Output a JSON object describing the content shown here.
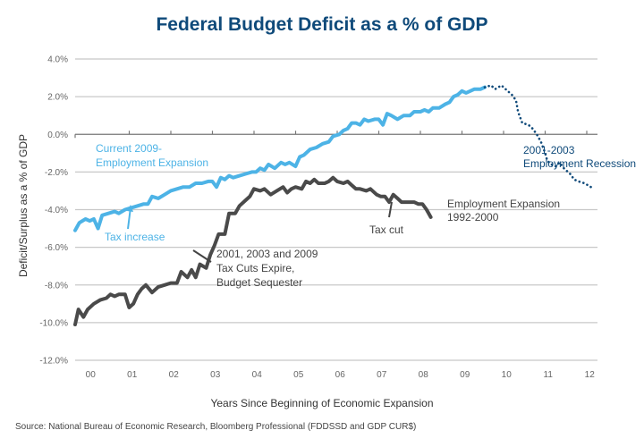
{
  "chart_data": {
    "type": "line",
    "title": "Federal Budget Deficit as a % of GDP",
    "xlabel": "Years Since Beginning of Economic Expansion",
    "ylabel": "Deficit/Surplus as a % of GDP",
    "source": "Source: National Bureau of Economic Research, Bloomberg Professional (FDDSSD and GDP CUR$)",
    "ylim": [
      -12,
      4
    ],
    "xlim": [
      0,
      13
    ],
    "grid": true,
    "y_ticks": [
      4,
      2,
      0,
      -2,
      -4,
      -6,
      -8,
      -10,
      -12
    ],
    "y_tick_labels": [
      "4.0%",
      "2.0%",
      "0.0%",
      "-2.0%",
      "-4.0%",
      "-6.0%",
      "-8.0%",
      "-10.0%",
      "-12.0%"
    ],
    "x_tick_labels": [
      "00",
      "01",
      "02",
      "03",
      "04",
      "05",
      "06",
      "07",
      "08",
      "09",
      "10",
      "11",
      "12"
    ],
    "series": [
      {
        "name": "Employment Expansion 1992-2000",
        "color": "#4a4a4a",
        "style": "solid",
        "points": [
          [
            0.0,
            -10.1
          ],
          [
            0.08,
            -9.3
          ],
          [
            0.2,
            -9.7
          ],
          [
            0.3,
            -9.3
          ],
          [
            0.45,
            -9.0
          ],
          [
            0.6,
            -8.8
          ],
          [
            0.75,
            -8.7
          ],
          [
            0.85,
            -8.5
          ],
          [
            0.95,
            -8.6
          ],
          [
            1.05,
            -8.5
          ],
          [
            1.2,
            -8.5
          ],
          [
            1.3,
            -9.2
          ],
          [
            1.4,
            -9.0
          ],
          [
            1.5,
            -8.5
          ],
          [
            1.6,
            -8.2
          ],
          [
            1.7,
            -8.0
          ],
          [
            1.85,
            -8.4
          ],
          [
            2.0,
            -8.1
          ],
          [
            2.15,
            -8.0
          ],
          [
            2.3,
            -7.9
          ],
          [
            2.45,
            -7.9
          ],
          [
            2.55,
            -7.3
          ],
          [
            2.7,
            -7.6
          ],
          [
            2.8,
            -7.2
          ],
          [
            2.9,
            -7.6
          ],
          [
            3.0,
            -6.9
          ],
          [
            3.15,
            -7.1
          ],
          [
            3.25,
            -6.4
          ],
          [
            3.35,
            -5.9
          ],
          [
            3.45,
            -5.3
          ],
          [
            3.6,
            -5.3
          ],
          [
            3.7,
            -4.2
          ],
          [
            3.85,
            -4.2
          ],
          [
            3.95,
            -3.8
          ],
          [
            4.1,
            -3.5
          ],
          [
            4.2,
            -3.3
          ],
          [
            4.3,
            -2.9
          ],
          [
            4.45,
            -3.0
          ],
          [
            4.55,
            -2.9
          ],
          [
            4.7,
            -3.2
          ],
          [
            4.85,
            -3.0
          ],
          [
            5.0,
            -2.8
          ],
          [
            5.1,
            -3.1
          ],
          [
            5.2,
            -2.9
          ],
          [
            5.3,
            -2.8
          ],
          [
            5.45,
            -2.9
          ],
          [
            5.55,
            -2.5
          ],
          [
            5.65,
            -2.6
          ],
          [
            5.75,
            -2.4
          ],
          [
            5.85,
            -2.6
          ],
          [
            6.0,
            -2.6
          ],
          [
            6.1,
            -2.5
          ],
          [
            6.2,
            -2.3
          ],
          [
            6.3,
            -2.5
          ],
          [
            6.45,
            -2.6
          ],
          [
            6.55,
            -2.5
          ],
          [
            6.65,
            -2.7
          ],
          [
            6.75,
            -2.9
          ],
          [
            6.85,
            -2.9
          ],
          [
            7.0,
            -3.0
          ],
          [
            7.1,
            -2.9
          ],
          [
            7.25,
            -3.2
          ],
          [
            7.35,
            -3.3
          ],
          [
            7.45,
            -3.3
          ],
          [
            7.55,
            -3.6
          ],
          [
            7.65,
            -3.2
          ],
          [
            7.75,
            -3.4
          ],
          [
            7.85,
            -3.6
          ],
          [
            8.0,
            -3.6
          ],
          [
            8.15,
            -3.6
          ],
          [
            8.25,
            -3.7
          ],
          [
            8.35,
            -3.7
          ],
          [
            8.45,
            -4.0
          ],
          [
            8.55,
            -4.4
          ]
        ]
      },
      {
        "name": "Current 2009- Employment Expansion",
        "color": "#4db3e6",
        "style": "solid",
        "points": [
          [
            0.0,
            -5.1
          ],
          [
            0.1,
            -4.7
          ],
          [
            0.25,
            -4.5
          ],
          [
            0.35,
            -4.6
          ],
          [
            0.45,
            -4.5
          ],
          [
            0.55,
            -5.0
          ],
          [
            0.65,
            -4.3
          ],
          [
            0.8,
            -4.2
          ],
          [
            0.95,
            -4.1
          ],
          [
            1.05,
            -4.2
          ],
          [
            1.2,
            -4.0
          ],
          [
            1.35,
            -3.9
          ],
          [
            1.5,
            -3.8
          ],
          [
            1.65,
            -3.7
          ],
          [
            1.75,
            -3.7
          ],
          [
            1.85,
            -3.3
          ],
          [
            2.0,
            -3.4
          ],
          [
            2.15,
            -3.2
          ],
          [
            2.3,
            -3.0
          ],
          [
            2.45,
            -2.9
          ],
          [
            2.6,
            -2.8
          ],
          [
            2.75,
            -2.8
          ],
          [
            2.9,
            -2.6
          ],
          [
            3.05,
            -2.6
          ],
          [
            3.2,
            -2.5
          ],
          [
            3.3,
            -2.5
          ],
          [
            3.4,
            -2.8
          ],
          [
            3.5,
            -2.3
          ],
          [
            3.6,
            -2.4
          ],
          [
            3.7,
            -2.2
          ],
          [
            3.8,
            -2.3
          ],
          [
            3.95,
            -2.2
          ],
          [
            4.1,
            -2.1
          ],
          [
            4.25,
            -2.0
          ],
          [
            4.35,
            -2.0
          ],
          [
            4.45,
            -1.8
          ],
          [
            4.55,
            -1.9
          ],
          [
            4.65,
            -1.6
          ],
          [
            4.8,
            -1.8
          ],
          [
            4.95,
            -1.5
          ],
          [
            5.05,
            -1.6
          ],
          [
            5.15,
            -1.5
          ],
          [
            5.3,
            -1.7
          ],
          [
            5.4,
            -1.2
          ],
          [
            5.5,
            -1.1
          ],
          [
            5.65,
            -0.8
          ],
          [
            5.8,
            -0.7
          ],
          [
            5.95,
            -0.5
          ],
          [
            6.1,
            -0.4
          ],
          [
            6.2,
            -0.1
          ],
          [
            6.35,
            0.0
          ],
          [
            6.45,
            0.2
          ],
          [
            6.55,
            0.3
          ],
          [
            6.65,
            0.6
          ],
          [
            6.75,
            0.6
          ],
          [
            6.85,
            0.5
          ],
          [
            6.95,
            0.8
          ],
          [
            7.05,
            0.7
          ],
          [
            7.2,
            0.8
          ],
          [
            7.3,
            0.8
          ],
          [
            7.4,
            0.5
          ],
          [
            7.5,
            1.1
          ],
          [
            7.6,
            1.0
          ],
          [
            7.75,
            0.8
          ],
          [
            7.9,
            1.0
          ],
          [
            8.05,
            1.0
          ],
          [
            8.15,
            1.2
          ],
          [
            8.3,
            1.2
          ],
          [
            8.4,
            1.3
          ],
          [
            8.5,
            1.2
          ],
          [
            8.6,
            1.4
          ],
          [
            8.75,
            1.4
          ],
          [
            8.9,
            1.6
          ],
          [
            9.0,
            1.7
          ],
          [
            9.1,
            2.0
          ],
          [
            9.2,
            2.1
          ],
          [
            9.3,
            2.3
          ],
          [
            9.4,
            2.2
          ],
          [
            9.5,
            2.3
          ],
          [
            9.6,
            2.4
          ],
          [
            9.75,
            2.4
          ],
          [
            9.85,
            2.5
          ]
        ]
      },
      {
        "name": "2001-2003 Employment Recession",
        "color": "#0f4a7a",
        "style": "dotted",
        "points": [
          [
            9.85,
            2.5
          ],
          [
            10.0,
            2.6
          ],
          [
            10.1,
            2.4
          ],
          [
            10.25,
            2.6
          ],
          [
            10.4,
            2.3
          ],
          [
            10.5,
            2.1
          ],
          [
            10.6,
            1.8
          ],
          [
            10.65,
            1.2
          ],
          [
            10.75,
            0.6
          ],
          [
            10.9,
            0.5
          ],
          [
            11.0,
            0.3
          ],
          [
            11.1,
            0.0
          ],
          [
            11.2,
            -0.4
          ],
          [
            11.3,
            -1.0
          ],
          [
            11.35,
            -1.4
          ],
          [
            11.45,
            -1.6
          ],
          [
            11.55,
            -1.7
          ],
          [
            11.65,
            -1.5
          ],
          [
            11.75,
            -1.8
          ],
          [
            11.9,
            -2.1
          ],
          [
            12.0,
            -2.4
          ],
          [
            12.1,
            -2.5
          ],
          [
            12.25,
            -2.6
          ],
          [
            12.4,
            -2.8
          ]
        ]
      }
    ],
    "annotations": [
      {
        "id": "current-expansion",
        "lines": [
          "Current 2009-",
          "Employment Expansion"
        ],
        "color": "#4db3e6"
      },
      {
        "id": "tax-increase",
        "lines": [
          "Tax increase"
        ],
        "color": "#4db3e6"
      },
      {
        "id": "tax-cuts-expire",
        "lines": [
          "2001, 2003 and 2009",
          "Tax Cuts Expire,",
          "Budget Sequester"
        ],
        "color": "#444444"
      },
      {
        "id": "tax-cut",
        "lines": [
          "Tax cut"
        ],
        "color": "#444444"
      },
      {
        "id": "expansion-1992",
        "lines": [
          "Employment Expansion",
          "1992-2000"
        ],
        "color": "#444444"
      },
      {
        "id": "recession-2001",
        "lines": [
          "2001-2003",
          "Employment Recession"
        ],
        "color": "#0f4a7a"
      }
    ]
  }
}
